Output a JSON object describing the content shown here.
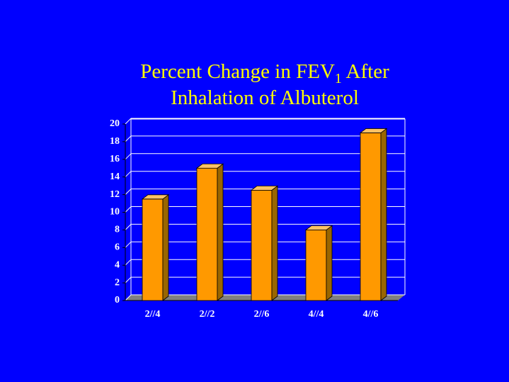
{
  "chart_data": {
    "type": "bar3d",
    "title": [
      "Percent Change in FEV",
      "1",
      " After",
      "Inhalation of Albuterol"
    ],
    "categories": [
      "2//4",
      "2//2",
      "2//6",
      "4//4",
      "4//6"
    ],
    "values": [
      11.5,
      15,
      12.5,
      8,
      19
    ],
    "color": "#ff9900",
    "ylim": [
      0,
      20
    ],
    "yticks": [
      0,
      2,
      4,
      6,
      8,
      10,
      12,
      14,
      16,
      18,
      20
    ],
    "grid": true
  }
}
